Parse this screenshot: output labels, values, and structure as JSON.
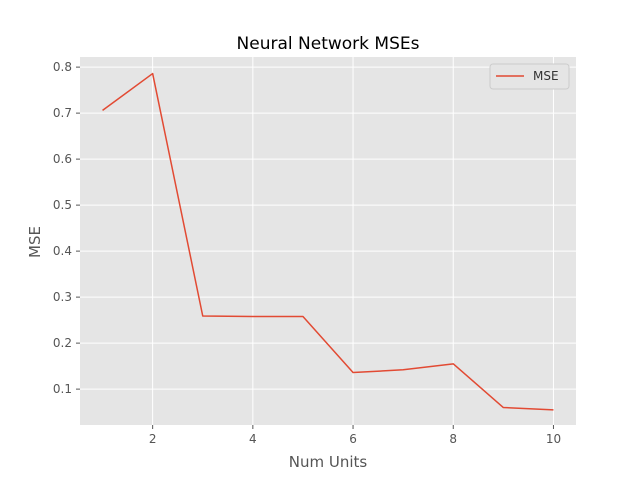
{
  "chart_data": {
    "type": "line",
    "title": "Neural Network MSEs",
    "xlabel": "Num Units",
    "ylabel": "MSE",
    "xlim": [
      0.55,
      10.45
    ],
    "ylim": [
      0.022,
      0.822
    ],
    "xticks": [
      2,
      4,
      6,
      8,
      10
    ],
    "yticks": [
      0.1,
      0.2,
      0.3,
      0.4,
      0.5,
      0.6,
      0.7,
      0.8
    ],
    "xtick_labels": [
      "2",
      "4",
      "6",
      "8",
      "10"
    ],
    "ytick_labels": [
      "0.1",
      "0.2",
      "0.3",
      "0.4",
      "0.5",
      "0.6",
      "0.7",
      "0.8"
    ],
    "grid": true,
    "legend_position": "top-right",
    "series": [
      {
        "name": "MSE",
        "color": "#E24A33",
        "x": [
          1,
          2,
          3,
          4,
          5,
          6,
          7,
          8,
          9,
          10
        ],
        "y": [
          0.706,
          0.786,
          0.259,
          0.258,
          0.258,
          0.136,
          0.142,
          0.155,
          0.06,
          0.055
        ]
      }
    ]
  }
}
